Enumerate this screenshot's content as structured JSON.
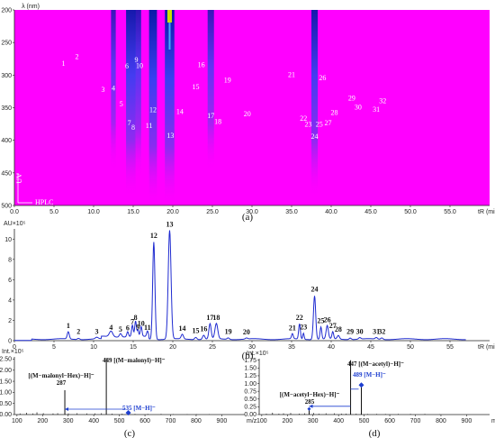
{
  "colors": {
    "heatmap_bg": "#ff00ff",
    "heatmap_band": "#1a2bd8",
    "heatmap_hot": "#c8e000",
    "trace": "#1f2bd0",
    "ms_arrow": "#1e3fd0"
  },
  "chart_data": [
    {
      "panel": "(a)",
      "type": "heatmap",
      "ylabel": "λ (nm)",
      "xlabel": "tR (min)",
      "corner_labels": [
        "UV",
        "HPLC"
      ],
      "xlim": [
        0,
        60
      ],
      "ylim": [
        200,
        500
      ],
      "x_ticks": [
        "0.0",
        "5.0",
        "10.0",
        "15.0",
        "20.0",
        "25.0",
        "30.0",
        "35.0",
        "40.0",
        "45.0",
        "50.0",
        "55.0"
      ],
      "y_ticks": [
        "200",
        "250",
        "300",
        "350",
        "400",
        "450",
        "500"
      ],
      "bands": [
        {
          "t": 12.5,
          "w": 0.3,
          "s": 0.6
        },
        {
          "t": 14.7,
          "w": 0.6,
          "s": 0.9
        },
        {
          "t": 15.6,
          "w": 0.4,
          "s": 0.7
        },
        {
          "t": 17.5,
          "w": 0.5,
          "s": 1.0
        },
        {
          "t": 19.6,
          "w": 0.6,
          "s": 1.0
        },
        {
          "t": 24.8,
          "w": 0.4,
          "s": 0.6
        },
        {
          "t": 37.9,
          "w": 0.4,
          "s": 0.9
        }
      ],
      "peak_labels": [
        {
          "n": "1",
          "t": 6.2,
          "wl": 286
        },
        {
          "n": "2",
          "t": 7.9,
          "wl": 275
        },
        {
          "n": "3",
          "t": 11.2,
          "wl": 326
        },
        {
          "n": "4",
          "t": 12.5,
          "wl": 324
        },
        {
          "n": "5",
          "t": 13.5,
          "wl": 348
        },
        {
          "n": "6",
          "t": 14.2,
          "wl": 290
        },
        {
          "n": "7",
          "t": 14.5,
          "wl": 377
        },
        {
          "n": "8",
          "t": 15.0,
          "wl": 384
        },
        {
          "n": "9",
          "t": 15.4,
          "wl": 280
        },
        {
          "n": "10",
          "t": 15.8,
          "wl": 289
        },
        {
          "n": "11",
          "t": 17.0,
          "wl": 381
        },
        {
          "n": "12",
          "t": 17.5,
          "wl": 357
        },
        {
          "n": "13",
          "t": 19.7,
          "wl": 396
        },
        {
          "n": "14",
          "t": 20.9,
          "wl": 360
        },
        {
          "n": "15",
          "t": 22.9,
          "wl": 322
        },
        {
          "n": "16",
          "t": 23.6,
          "wl": 288
        },
        {
          "n": "17",
          "t": 24.8,
          "wl": 366
        },
        {
          "n": "18",
          "t": 25.7,
          "wl": 375
        },
        {
          "n": "19",
          "t": 26.9,
          "wl": 311
        },
        {
          "n": "20",
          "t": 29.4,
          "wl": 363
        },
        {
          "n": "21",
          "t": 35.0,
          "wl": 303
        },
        {
          "n": "22",
          "t": 36.5,
          "wl": 370
        },
        {
          "n": "23",
          "t": 37.1,
          "wl": 379
        },
        {
          "n": "24",
          "t": 37.9,
          "wl": 398
        },
        {
          "n": "25",
          "t": 38.5,
          "wl": 379
        },
        {
          "n": "26",
          "t": 38.9,
          "wl": 308
        },
        {
          "n": "27",
          "t": 39.6,
          "wl": 377
        },
        {
          "n": "28",
          "t": 40.4,
          "wl": 361
        },
        {
          "n": "29",
          "t": 42.6,
          "wl": 339
        },
        {
          "n": "30",
          "t": 43.4,
          "wl": 353
        },
        {
          "n": "31",
          "t": 45.7,
          "wl": 356
        },
        {
          "n": "32",
          "t": 46.5,
          "wl": 343
        }
      ]
    },
    {
      "panel": "(b)",
      "type": "line",
      "ylabel": "AU×10⁵",
      "xlabel": "tR (min)",
      "xlim": [
        0,
        60
      ],
      "ylim": [
        0,
        11
      ],
      "x_ticks": [
        0,
        5,
        10,
        15,
        20,
        25,
        30,
        35,
        40,
        45,
        50,
        55
      ],
      "y_ticks": [
        0,
        2,
        4,
        6,
        8,
        10
      ],
      "peaks": [
        {
          "n": "1",
          "t": 6.8,
          "h": 0.7,
          "w": 0.18
        },
        {
          "n": "2",
          "t": 8.1,
          "h": 0.12,
          "w": 0.2
        },
        {
          "n": "3",
          "t": 10.4,
          "h": 0.15,
          "w": 0.25
        },
        {
          "n": "4",
          "t": 12.2,
          "h": 0.55,
          "w": 0.3
        },
        {
          "n": "5",
          "t": 13.4,
          "h": 0.35,
          "w": 0.2
        },
        {
          "n": "6",
          "t": 14.3,
          "h": 0.5,
          "w": 0.15
        },
        {
          "n": "7",
          "t": 14.9,
          "h": 1.1,
          "w": 0.15
        },
        {
          "n": "8",
          "t": 15.3,
          "h": 1.5,
          "w": 0.15
        },
        {
          "n": "9",
          "t": 15.6,
          "h": 0.6,
          "w": 0.12
        },
        {
          "n": "10",
          "t": 16.0,
          "h": 0.95,
          "w": 0.15
        },
        {
          "n": "11",
          "t": 16.8,
          "h": 0.55,
          "w": 0.15
        },
        {
          "n": "12",
          "t": 17.6,
          "h": 9.6,
          "w": 0.2
        },
        {
          "n": "13",
          "t": 19.6,
          "h": 10.7,
          "w": 0.25
        },
        {
          "n": "14",
          "t": 21.2,
          "h": 0.45,
          "w": 0.2
        },
        {
          "n": "15",
          "t": 22.9,
          "h": 0.22,
          "w": 0.2
        },
        {
          "n": "16",
          "t": 23.9,
          "h": 0.4,
          "w": 0.2
        },
        {
          "n": "17",
          "t": 24.7,
          "h": 1.5,
          "w": 0.2
        },
        {
          "n": "18",
          "t": 25.5,
          "h": 1.5,
          "w": 0.25
        },
        {
          "n": "19",
          "t": 27.0,
          "h": 0.15,
          "w": 0.2
        },
        {
          "n": "20",
          "t": 29.3,
          "h": 0.1,
          "w": 0.2
        },
        {
          "n": "21",
          "t": 35.1,
          "h": 0.5,
          "w": 0.15
        },
        {
          "n": "22",
          "t": 36.0,
          "h": 1.5,
          "w": 0.15
        },
        {
          "n": "23",
          "t": 36.5,
          "h": 0.6,
          "w": 0.12
        },
        {
          "n": "24",
          "t": 37.9,
          "h": 4.3,
          "w": 0.2
        },
        {
          "n": "25",
          "t": 38.7,
          "h": 1.2,
          "w": 0.15
        },
        {
          "n": "26",
          "t": 39.5,
          "h": 1.3,
          "w": 0.2
        },
        {
          "n": "27",
          "t": 40.2,
          "h": 0.7,
          "w": 0.15
        },
        {
          "n": "28",
          "t": 40.9,
          "h": 0.35,
          "w": 0.2
        },
        {
          "n": "29",
          "t": 42.4,
          "h": 0.15,
          "w": 0.2
        },
        {
          "n": "30",
          "t": 43.6,
          "h": 0.15,
          "w": 0.2
        },
        {
          "n": "31",
          "t": 45.7,
          "h": 0.15,
          "w": 0.2
        },
        {
          "n": "32",
          "t": 46.4,
          "h": 0.15,
          "w": 0.2
        }
      ]
    },
    {
      "panel": "(c)",
      "type": "bar",
      "ylabel": "Int.×10⁵",
      "xlabel": "m/z",
      "xlim": [
        90,
        990
      ],
      "ylim": [
        0,
        2.6
      ],
      "x_ticks": [
        100,
        200,
        300,
        400,
        500,
        600,
        700,
        800,
        900
      ],
      "y_ticks": [
        "0.00",
        "0.50",
        "1.00",
        "1.50",
        "2.00",
        "2.50"
      ],
      "peaks": [
        {
          "mz": 287,
          "i": 1.1,
          "label": "[(M−malonyl−Hex)−H]⁻\n287"
        },
        {
          "mz": 449,
          "i": 2.55,
          "label": "449 [(M−malonyl)−H]⁻"
        },
        {
          "mz": 535,
          "i": 0.08,
          "label": "535 [M−H]⁻"
        }
      ],
      "noise": [
        [
          112,
          0.05
        ],
        [
          137,
          0.08
        ],
        [
          162,
          0.05
        ],
        [
          178,
          0.1
        ],
        [
          203,
          0.06
        ],
        [
          241,
          0.05
        ],
        [
          259,
          0.06
        ],
        [
          301,
          0.05
        ],
        [
          335,
          0.06
        ],
        [
          373,
          0.05
        ],
        [
          405,
          0.05
        ],
        [
          430,
          0.06
        ],
        [
          471,
          0.04
        ],
        [
          511,
          0.04
        ],
        [
          561,
          0.03
        ],
        [
          611,
          0.03
        ],
        [
          663,
          0.03
        ],
        [
          711,
          0.02
        ],
        [
          765,
          0.02
        ],
        [
          801,
          0.02
        ],
        [
          851,
          0.02
        ]
      ]
    },
    {
      "panel": "(d)",
      "type": "bar",
      "ylabel": "Int.×10⁵",
      "xlabel": "m/z",
      "xlim": [
        90,
        990
      ],
      "ylim": [
        0,
        1.8
      ],
      "x_ticks": [
        100,
        200,
        300,
        400,
        500,
        600,
        700,
        800,
        900
      ],
      "y_ticks": [
        "0.00",
        "0.25",
        "0.50",
        "0.75",
        "1.00",
        "1.25",
        "1.50",
        "1.75"
      ],
      "peaks": [
        {
          "mz": 285,
          "i": 0.18,
          "label": "[(M−acetyl−Hex)−H]⁻\n285"
        },
        {
          "mz": 447,
          "i": 1.75,
          "label": "447 [(M−acetyl)−H]⁻"
        },
        {
          "mz": 489,
          "i": 0.95,
          "label": "489 [M−H]⁻"
        }
      ],
      "noise": [
        [
          118,
          0.03
        ],
        [
          142,
          0.06
        ],
        [
          167,
          0.03
        ],
        [
          185,
          0.04
        ],
        [
          213,
          0.05
        ],
        [
          247,
          0.03
        ],
        [
          268,
          0.04
        ],
        [
          303,
          0.05
        ],
        [
          323,
          0.03
        ],
        [
          351,
          0.04
        ],
        [
          383,
          0.04
        ],
        [
          411,
          0.03
        ],
        [
          429,
          0.03
        ],
        [
          469,
          0.03
        ],
        [
          513,
          0.02
        ],
        [
          549,
          0.02
        ],
        [
          583,
          0.02
        ],
        [
          633,
          0.02
        ],
        [
          681,
          0.02
        ],
        [
          737,
          0.02
        ],
        [
          795,
          0.01
        ]
      ]
    }
  ]
}
